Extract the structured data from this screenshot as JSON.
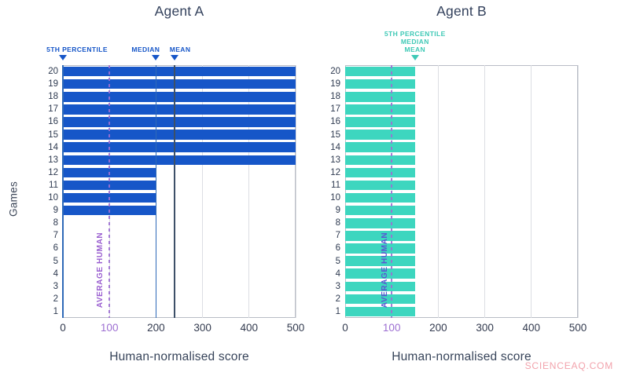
{
  "figure": {
    "watermark": "SCIENCEAQ.COM"
  },
  "chart_data": [
    {
      "type": "bar",
      "orientation": "horizontal",
      "title": "Agent A",
      "xlabel": "Human-normalised score",
      "ylabel": "Games",
      "categories": [
        1,
        2,
        3,
        4,
        5,
        6,
        7,
        8,
        9,
        10,
        11,
        12,
        13,
        14,
        15,
        16,
        17,
        18,
        19,
        20
      ],
      "values": [
        0,
        0,
        0,
        0,
        0,
        0,
        0,
        0,
        200,
        200,
        200,
        200,
        500,
        500,
        500,
        500,
        500,
        500,
        500,
        500
      ],
      "xlim": [
        0,
        500
      ],
      "xticks": [
        0,
        100,
        200,
        300,
        400,
        500
      ],
      "grid": "vertical",
      "legend": "none",
      "bar_color": "#1656c8",
      "annotation_color": "#1656c8",
      "stat_labels": [
        "5TH PERCENTILE",
        "MEDIAN",
        "MEAN"
      ],
      "stats": {
        "5th_percentile": 0,
        "median": 200,
        "mean": 240
      },
      "stat_lines": [
        {
          "value": 0,
          "color": "#2f6ab8"
        },
        {
          "value": 200,
          "color": "#2f6ab8"
        },
        {
          "value": 240,
          "color": "#3d5068"
        }
      ],
      "average_human": {
        "value": 100,
        "label": "AVERAGE HUMAN",
        "line_color": "#9d6fd2",
        "text_color": "#9a5fd0",
        "tick_color": "#9d6fd2"
      }
    },
    {
      "type": "bar",
      "orientation": "horizontal",
      "title": "Agent B",
      "xlabel": "Human-normalised score",
      "ylabel": "",
      "categories": [
        1,
        2,
        3,
        4,
        5,
        6,
        7,
        8,
        9,
        10,
        11,
        12,
        13,
        14,
        15,
        16,
        17,
        18,
        19,
        20
      ],
      "values": [
        150,
        150,
        150,
        150,
        150,
        150,
        150,
        150,
        150,
        150,
        150,
        150,
        150,
        150,
        150,
        150,
        150,
        150,
        150,
        150
      ],
      "xlim": [
        0,
        500
      ],
      "xticks": [
        0,
        100,
        200,
        300,
        400,
        500
      ],
      "grid": "vertical",
      "legend": "none",
      "bar_color": "#3dd6bf",
      "annotation_color": "#3fc9b6",
      "stat_labels": [
        "5TH PERCENTILE",
        "MEDIAN",
        "MEAN"
      ],
      "stats": {
        "5th_percentile": 150,
        "median": 150,
        "mean": 150
      },
      "stat_lines": [],
      "average_human": {
        "value": 100,
        "label": "AVERAGE HUMAN",
        "line_color": "#9d6fd2",
        "text_color": "#5a55d2",
        "tick_color": "#9d6fd2"
      }
    }
  ]
}
